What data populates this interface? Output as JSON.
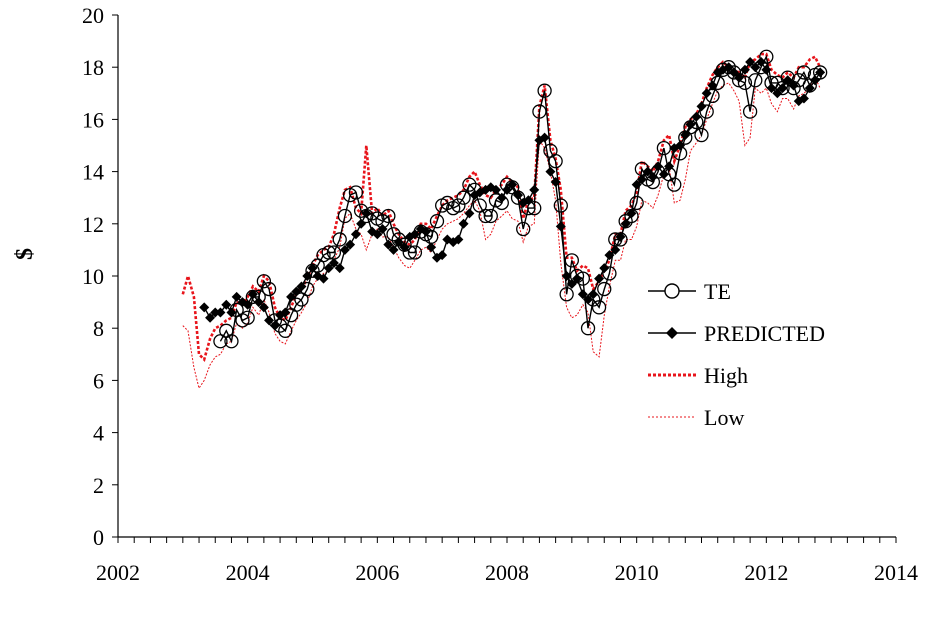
{
  "chart_data": {
    "type": "line",
    "title": "",
    "xlabel": "",
    "ylabel": "$",
    "xlim": [
      2002,
      2014
    ],
    "ylim": [
      0,
      20
    ],
    "x_ticks": [
      "2002",
      "2004",
      "2006",
      "2008",
      "2010",
      "2012",
      "2014"
    ],
    "y_ticks": [
      "0",
      "2",
      "4",
      "6",
      "8",
      "10",
      "12",
      "14",
      "16",
      "18",
      "20"
    ],
    "legend_position": "right-center",
    "grid": false,
    "colors": {
      "te": "#000000",
      "predicted": "#000000",
      "high": "#e8141b",
      "low": "#e8141b"
    },
    "series": [
      {
        "name": "TE",
        "key": "te",
        "marker": "open-circle",
        "x": [
          2003.58,
          2003.67,
          2003.75,
          2003.83,
          2003.92,
          2004.0,
          2004.08,
          2004.17,
          2004.25,
          2004.33,
          2004.42,
          2004.5,
          2004.58,
          2004.67,
          2004.75,
          2004.83,
          2004.92,
          2005.0,
          2005.08,
          2005.17,
          2005.25,
          2005.33,
          2005.42,
          2005.5,
          2005.58,
          2005.67,
          2005.75,
          2005.83,
          2005.92,
          2006.0,
          2006.08,
          2006.17,
          2006.25,
          2006.33,
          2006.42,
          2006.5,
          2006.58,
          2006.67,
          2006.75,
          2006.83,
          2006.92,
          2007.0,
          2007.08,
          2007.17,
          2007.25,
          2007.33,
          2007.42,
          2007.5,
          2007.58,
          2007.67,
          2007.75,
          2007.83,
          2007.92,
          2008.0,
          2008.08,
          2008.17,
          2008.25,
          2008.33,
          2008.42,
          2008.5,
          2008.58,
          2008.67,
          2008.75,
          2008.83,
          2008.92,
          2009.0,
          2009.08,
          2009.17,
          2009.25,
          2009.33,
          2009.42,
          2009.5,
          2009.58,
          2009.67,
          2009.75,
          2009.83,
          2009.92,
          2010.0,
          2010.08,
          2010.17,
          2010.25,
          2010.33,
          2010.42,
          2010.5,
          2010.58,
          2010.67,
          2010.75,
          2010.83,
          2010.92,
          2011.0,
          2011.08,
          2011.17,
          2011.25,
          2011.33,
          2011.42,
          2011.5,
          2011.58,
          2011.67,
          2011.75,
          2011.83,
          2011.92,
          2012.0,
          2012.08,
          2012.17,
          2012.25,
          2012.33,
          2012.42,
          2012.5,
          2012.58,
          2012.67,
          2012.75,
          2012.83
        ],
        "y": [
          7.5,
          7.9,
          7.5,
          8.7,
          8.3,
          8.4,
          9.2,
          9.2,
          9.8,
          9.5,
          8.3,
          8.1,
          7.9,
          8.5,
          8.9,
          9.1,
          9.5,
          10.2,
          10.4,
          10.8,
          10.9,
          10.9,
          11.4,
          12.3,
          13.1,
          13.2,
          12.5,
          12.3,
          12.4,
          12.2,
          12.1,
          12.3,
          11.6,
          11.4,
          11.2,
          10.9,
          10.9,
          11.7,
          11.6,
          11.5,
          12.1,
          12.7,
          12.8,
          12.6,
          12.7,
          13.0,
          13.5,
          13.3,
          12.7,
          12.3,
          12.3,
          12.9,
          12.8,
          13.5,
          13.4,
          13.0,
          11.8,
          12.6,
          12.6,
          16.3,
          17.1,
          14.8,
          14.4,
          12.7,
          9.3,
          10.6,
          10.0,
          9.9,
          8.0,
          9.1,
          8.8,
          9.5,
          10.1,
          11.4,
          11.4,
          12.1,
          12.3,
          12.8,
          14.1,
          13.7,
          13.6,
          14.0,
          14.9,
          13.9,
          13.5,
          14.7,
          15.3,
          15.7,
          15.9,
          15.4,
          16.3,
          16.9,
          17.4,
          17.9,
          18.0,
          17.8,
          17.5,
          17.4,
          16.3,
          17.5,
          18.0,
          18.4,
          17.4,
          17.4,
          17.2,
          17.6,
          17.2,
          17.5,
          17.8,
          17.3,
          17.7,
          17.8
        ]
      },
      {
        "name": "PREDICTED",
        "key": "predicted",
        "marker": "filled-diamond",
        "x": [
          2003.33,
          2003.42,
          2003.5,
          2003.58,
          2003.67,
          2003.75,
          2003.83,
          2003.92,
          2004.0,
          2004.08,
          2004.17,
          2004.25,
          2004.33,
          2004.42,
          2004.5,
          2004.58,
          2004.67,
          2004.75,
          2004.83,
          2004.92,
          2005.0,
          2005.08,
          2005.17,
          2005.25,
          2005.33,
          2005.42,
          2005.5,
          2005.58,
          2005.67,
          2005.75,
          2005.83,
          2005.92,
          2006.0,
          2006.08,
          2006.17,
          2006.25,
          2006.33,
          2006.42,
          2006.5,
          2006.58,
          2006.67,
          2006.75,
          2006.83,
          2006.92,
          2007.0,
          2007.08,
          2007.17,
          2007.25,
          2007.33,
          2007.42,
          2007.5,
          2007.58,
          2007.67,
          2007.75,
          2007.83,
          2007.92,
          2008.0,
          2008.08,
          2008.17,
          2008.25,
          2008.33,
          2008.42,
          2008.5,
          2008.58,
          2008.67,
          2008.75,
          2008.83,
          2008.92,
          2009.0,
          2009.08,
          2009.17,
          2009.25,
          2009.33,
          2009.42,
          2009.5,
          2009.58,
          2009.67,
          2009.75,
          2009.83,
          2009.92,
          2010.0,
          2010.08,
          2010.17,
          2010.25,
          2010.33,
          2010.42,
          2010.5,
          2010.58,
          2010.67,
          2010.75,
          2010.83,
          2010.92,
          2011.0,
          2011.08,
          2011.17,
          2011.25,
          2011.33,
          2011.42,
          2011.5,
          2011.58,
          2011.67,
          2011.75,
          2011.83,
          2011.92,
          2012.0,
          2012.08,
          2012.17,
          2012.25,
          2012.33,
          2012.42,
          2012.5,
          2012.58,
          2012.67,
          2012.75,
          2012.83
        ],
        "y": [
          8.8,
          8.4,
          8.6,
          8.6,
          8.9,
          8.6,
          9.2,
          9.0,
          8.9,
          9.3,
          9.0,
          8.8,
          8.3,
          8.1,
          8.5,
          8.6,
          9.2,
          9.4,
          9.6,
          10.0,
          10.3,
          10.0,
          9.9,
          10.3,
          10.5,
          10.3,
          11.0,
          11.2,
          11.6,
          12.0,
          12.4,
          11.7,
          11.6,
          11.8,
          11.2,
          11.0,
          11.3,
          11.1,
          11.5,
          11.6,
          11.8,
          11.7,
          11.1,
          10.7,
          10.8,
          11.4,
          11.3,
          11.4,
          12.0,
          12.4,
          13.1,
          13.2,
          13.3,
          13.4,
          13.3,
          13.0,
          13.3,
          13.5,
          13.1,
          12.8,
          12.9,
          13.3,
          15.2,
          15.3,
          14.0,
          13.6,
          11.9,
          10.0,
          9.7,
          9.9,
          9.3,
          9.1,
          9.3,
          9.9,
          10.3,
          10.8,
          11.0,
          11.5,
          12.0,
          12.4,
          13.5,
          13.7,
          14.0,
          13.8,
          14.2,
          13.9,
          14.2,
          14.9,
          15.0,
          15.4,
          15.8,
          16.1,
          16.5,
          17.0,
          17.3,
          17.8,
          17.9,
          18.0,
          17.8,
          17.6,
          17.9,
          18.2,
          18.0,
          18.2,
          17.9,
          17.2,
          17.0,
          17.2,
          17.5,
          17.3,
          16.7,
          16.8,
          17.2,
          17.5,
          17.8
        ]
      },
      {
        "name": "High",
        "key": "high",
        "style": "dotted-bold",
        "x": [
          2003.0,
          2003.08,
          2003.17,
          2003.25,
          2003.33,
          2003.42,
          2003.5,
          2003.58,
          2003.67,
          2003.75,
          2003.83,
          2003.92,
          2004.0,
          2004.08,
          2004.17,
          2004.25,
          2004.33,
          2004.42,
          2004.5,
          2004.58,
          2004.67,
          2004.75,
          2004.83,
          2004.92,
          2005.0,
          2005.08,
          2005.17,
          2005.25,
          2005.33,
          2005.42,
          2005.5,
          2005.58,
          2005.67,
          2005.75,
          2005.83,
          2005.92,
          2006.0,
          2006.08,
          2006.17,
          2006.25,
          2006.33,
          2006.42,
          2006.5,
          2006.58,
          2006.67,
          2006.75,
          2006.83,
          2006.92,
          2007.0,
          2007.08,
          2007.17,
          2007.25,
          2007.33,
          2007.42,
          2007.5,
          2007.58,
          2007.67,
          2007.75,
          2007.83,
          2007.92,
          2008.0,
          2008.08,
          2008.17,
          2008.25,
          2008.33,
          2008.42,
          2008.5,
          2008.58,
          2008.67,
          2008.75,
          2008.83,
          2008.92,
          2009.0,
          2009.08,
          2009.17,
          2009.25,
          2009.33,
          2009.42,
          2009.5,
          2009.58,
          2009.67,
          2009.75,
          2009.83,
          2009.92,
          2010.0,
          2010.08,
          2010.17,
          2010.25,
          2010.33,
          2010.42,
          2010.5,
          2010.58,
          2010.67,
          2010.75,
          2010.83,
          2010.92,
          2011.0,
          2011.08,
          2011.17,
          2011.25,
          2011.33,
          2011.42,
          2011.5,
          2011.58,
          2011.67,
          2011.75,
          2011.83,
          2011.92,
          2012.0,
          2012.08,
          2012.17,
          2012.25,
          2012.33,
          2012.42,
          2012.5,
          2012.58,
          2012.67,
          2012.75,
          2012.83
        ],
        "y": [
          9.3,
          10.0,
          9.2,
          7.0,
          6.8,
          7.6,
          8.0,
          8.1,
          8.3,
          8.4,
          9.0,
          8.9,
          9.2,
          9.6,
          9.4,
          10.0,
          9.8,
          8.8,
          8.4,
          8.3,
          8.8,
          9.3,
          9.5,
          9.9,
          10.4,
          10.8,
          11.0,
          11.1,
          11.6,
          12.6,
          13.3,
          13.4,
          12.6,
          12.4,
          15.0,
          12.4,
          12.6,
          12.3,
          12.5,
          12.0,
          11.6,
          11.3,
          11.2,
          11.4,
          12.0,
          12.0,
          11.8,
          12.3,
          12.7,
          12.9,
          13.0,
          13.1,
          13.3,
          13.8,
          14.0,
          13.5,
          13.1,
          13.0,
          13.3,
          13.5,
          13.8,
          13.6,
          13.4,
          12.2,
          12.9,
          13.0,
          16.5,
          17.3,
          15.2,
          14.5,
          13.3,
          10.7,
          10.7,
          10.2,
          10.4,
          10.3,
          9.5,
          9.8,
          10.2,
          10.6,
          11.6,
          11.6,
          12.5,
          12.7,
          13.2,
          14.4,
          14.2,
          14.0,
          14.4,
          15.2,
          15.4,
          14.4,
          15.0,
          15.7,
          16.0,
          16.2,
          16.6,
          17.2,
          17.7,
          18.0,
          18.2,
          18.0,
          17.9,
          17.8,
          17.6,
          18.2,
          18.3,
          18.5,
          18.5,
          17.9,
          17.7,
          17.6,
          17.8,
          17.6,
          18.0,
          18.0,
          18.3,
          18.4,
          18.0
        ]
      },
      {
        "name": "Low",
        "key": "low",
        "style": "dotted-thin",
        "x": [
          2003.0,
          2003.08,
          2003.17,
          2003.25,
          2003.33,
          2003.42,
          2003.5,
          2003.58,
          2003.67,
          2003.75,
          2003.83,
          2003.92,
          2004.0,
          2004.08,
          2004.17,
          2004.25,
          2004.33,
          2004.42,
          2004.5,
          2004.58,
          2004.67,
          2004.75,
          2004.83,
          2004.92,
          2005.0,
          2005.08,
          2005.17,
          2005.25,
          2005.33,
          2005.42,
          2005.5,
          2005.58,
          2005.67,
          2005.75,
          2005.83,
          2005.92,
          2006.0,
          2006.08,
          2006.17,
          2006.25,
          2006.33,
          2006.42,
          2006.5,
          2006.58,
          2006.67,
          2006.75,
          2006.83,
          2006.92,
          2007.0,
          2007.08,
          2007.17,
          2007.25,
          2007.33,
          2007.42,
          2007.5,
          2007.58,
          2007.67,
          2007.75,
          2007.83,
          2007.92,
          2008.0,
          2008.08,
          2008.17,
          2008.25,
          2008.33,
          2008.42,
          2008.5,
          2008.58,
          2008.67,
          2008.75,
          2008.83,
          2008.92,
          2009.0,
          2009.08,
          2009.17,
          2009.25,
          2009.33,
          2009.42,
          2009.5,
          2009.58,
          2009.67,
          2009.75,
          2009.83,
          2009.92,
          2010.0,
          2010.08,
          2010.17,
          2010.25,
          2010.33,
          2010.42,
          2010.5,
          2010.58,
          2010.67,
          2010.75,
          2010.83,
          2010.92,
          2011.0,
          2011.08,
          2011.17,
          2011.25,
          2011.33,
          2011.42,
          2011.5,
          2011.58,
          2011.67,
          2011.75,
          2011.83,
          2011.92,
          2012.0,
          2012.08,
          2012.17,
          2012.25,
          2012.33,
          2012.42,
          2012.5,
          2012.58,
          2012.67,
          2012.75,
          2012.83
        ],
        "y": [
          8.1,
          7.9,
          6.5,
          5.7,
          6.0,
          6.6,
          6.9,
          7.0,
          7.4,
          7.5,
          8.2,
          8.0,
          8.2,
          8.8,
          8.5,
          9.1,
          8.6,
          7.8,
          7.5,
          7.4,
          7.9,
          8.3,
          8.6,
          9.0,
          9.6,
          9.9,
          10.1,
          10.2,
          10.6,
          11.1,
          12.2,
          12.4,
          11.8,
          11.6,
          11.0,
          11.6,
          11.8,
          11.5,
          11.5,
          11.1,
          10.7,
          10.4,
          10.3,
          10.6,
          11.0,
          11.1,
          10.9,
          11.4,
          11.8,
          12.0,
          12.1,
          12.2,
          12.4,
          12.7,
          12.9,
          12.5,
          11.4,
          11.6,
          12.1,
          12.3,
          12.5,
          12.2,
          12.1,
          11.3,
          11.9,
          12.0,
          15.2,
          14.9,
          14.0,
          12.9,
          10.5,
          8.8,
          8.4,
          8.5,
          8.9,
          8.6,
          7.1,
          6.9,
          8.5,
          9.6,
          10.6,
          10.6,
          11.4,
          11.4,
          11.9,
          12.9,
          12.8,
          12.6,
          13.1,
          13.9,
          14.2,
          12.8,
          12.9,
          13.7,
          14.8,
          15.1,
          15.4,
          16.0,
          16.6,
          17.1,
          17.3,
          17.4,
          17.1,
          16.7,
          15.0,
          15.3,
          17.2,
          17.0,
          17.2,
          16.6,
          16.3,
          16.8,
          16.8,
          16.4,
          16.9,
          17.0,
          17.2,
          17.6,
          17.2
        ]
      }
    ]
  }
}
